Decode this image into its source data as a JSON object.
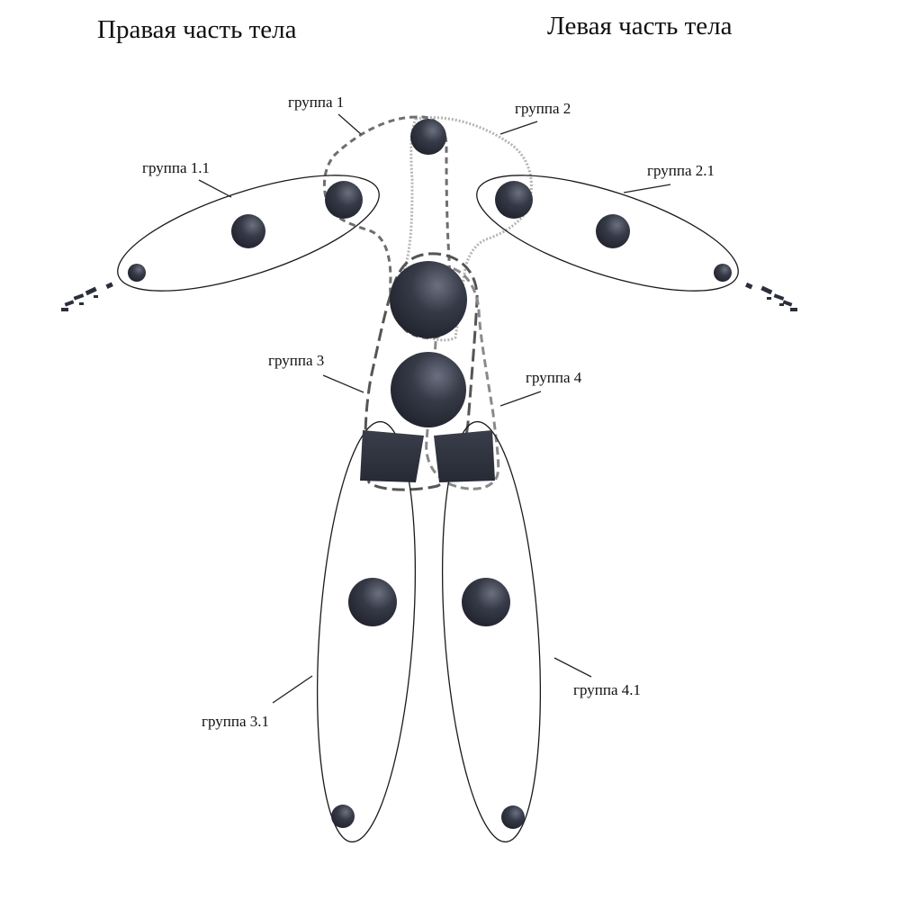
{
  "headings": {
    "right_side": "Правая часть тела",
    "left_side": "Левая часть тела"
  },
  "groups": {
    "g1": "группа 1",
    "g2": "группа 2",
    "g11": "группа 1.1",
    "g21": "группа 2.1",
    "g3": "группа 3",
    "g4": "группа 4",
    "g31": "группа 3.1",
    "g41": "группа 4.1"
  },
  "colors": {
    "marker": "#2b2f3a",
    "marker_highlight": "#6b7080",
    "group_1_outline": "#6e6e6e",
    "group_2_outline": "#b4b4b4",
    "group_3_outline": "#555555",
    "group_4_outline": "#8a8a8a",
    "ellipse_outline": "#1a1a1a"
  }
}
